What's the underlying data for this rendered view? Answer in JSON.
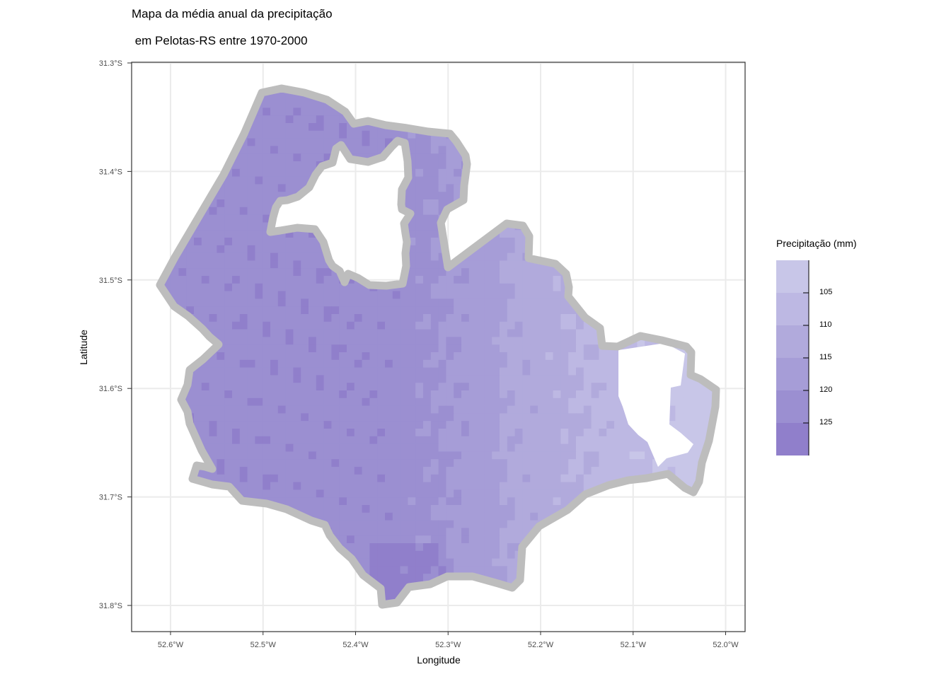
{
  "title_line1": "Mapa da média anual da precipitação",
  "title_line2": " em Pelotas-RS entre 1970-2000",
  "x_axis": {
    "label": "Longitude",
    "ticks": [
      {
        "value": -52.6,
        "label": "52.6°W"
      },
      {
        "value": -52.5,
        "label": "52.5°W"
      },
      {
        "value": -52.4,
        "label": "52.4°W"
      },
      {
        "value": -52.3,
        "label": "52.3°W"
      },
      {
        "value": -52.2,
        "label": "52.2°W"
      },
      {
        "value": -52.1,
        "label": "52.1°W"
      },
      {
        "value": -52.0,
        "label": "52.0°W"
      }
    ]
  },
  "y_axis": {
    "label": "Latitude",
    "ticks": [
      {
        "value": -31.3,
        "label": "31.3°S"
      },
      {
        "value": -31.4,
        "label": "31.4°S"
      },
      {
        "value": -31.5,
        "label": "31.5°S"
      },
      {
        "value": -31.6,
        "label": "31.6°S"
      },
      {
        "value": -31.7,
        "label": "31.7°S"
      },
      {
        "value": -31.8,
        "label": "31.8°S"
      }
    ]
  },
  "legend": {
    "title": "Precipitação (mm)",
    "breaks": [
      "105",
      "110",
      "115",
      "120",
      "125"
    ],
    "colors": [
      "#c8c6e8",
      "#bdb8e3",
      "#b1aadc",
      "#a69dd7",
      "#9b8fd1",
      "#907fcb"
    ]
  },
  "colors": {
    "boundary": "#bdbdbd",
    "grid": "#ebebeb",
    "panel_border": "#333333"
  }
}
